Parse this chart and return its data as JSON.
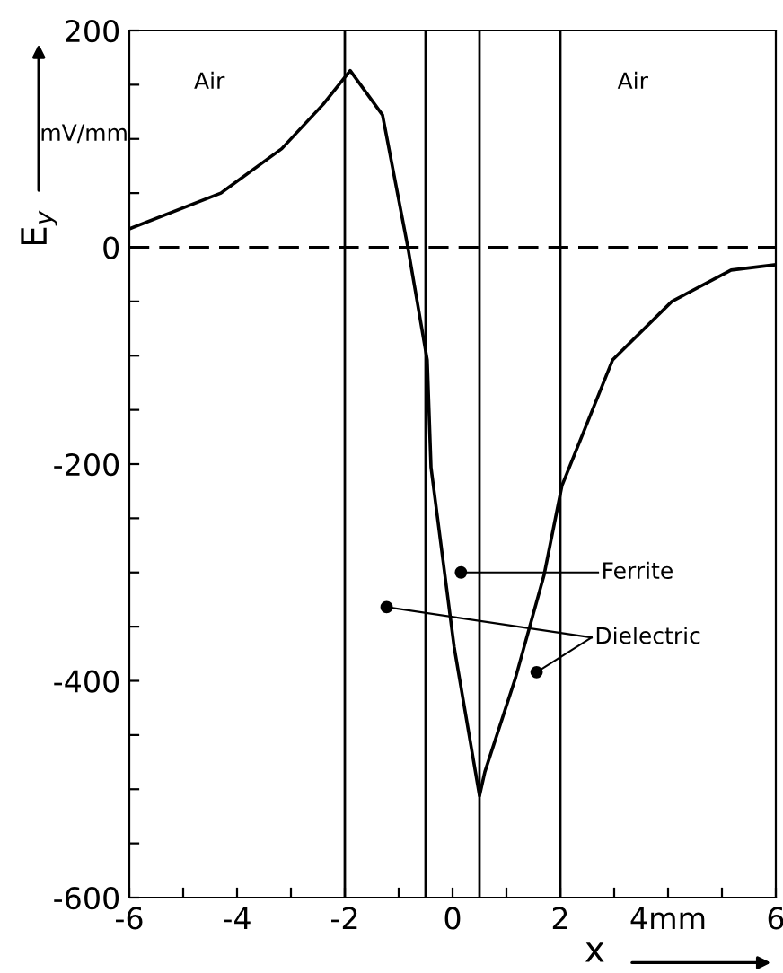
{
  "chart_data": {
    "type": "line",
    "xlabel": "x",
    "ylabel": "E$_{y}$",
    "x": [
      -6,
      -4.3,
      -3.17,
      -2.4,
      -1.9,
      -1.3,
      -0.83,
      -0.47,
      -0.4,
      0.03,
      0.5,
      0.6,
      1.17,
      1.7,
      2.03,
      2.97,
      4.07,
      5.17,
      6
    ],
    "series": [
      {
        "color": "#000000",
        "values": [
          17,
          50,
          91,
          132,
          163,
          122,
          0,
          -104,
          -203,
          -369,
          -506,
          -484,
          -397,
          -302,
          -220,
          -104,
          -50,
          -21,
          -16
        ]
      }
    ],
    "xlim": [
      -6,
      6
    ],
    "ylim": [
      -600,
      200
    ],
    "xticks": [
      -6,
      {
        "value": -5,
        "label": null
      },
      -4,
      {
        "value": -3,
        "label": null
      },
      -2,
      {
        "value": -1,
        "label": null
      },
      0,
      {
        "value": 1,
        "label": null
      },
      2,
      {
        "value": 3,
        "label": null
      },
      {
        "value": 4,
        "label": "4mm"
      },
      {
        "value": 5,
        "label": null
      },
      6
    ],
    "yticks": [
      -600,
      {
        "value": -550,
        "label": null
      },
      {
        "value": -500,
        "label": null
      },
      {
        "value": -450,
        "label": null
      },
      -400,
      {
        "value": -350,
        "label": null
      },
      {
        "value": -300,
        "label": null
      },
      {
        "value": -250,
        "label": null
      },
      -200,
      {
        "value": -150,
        "label": null
      },
      {
        "value": -100,
        "label": null
      },
      {
        "value": -50,
        "label": null
      },
      0,
      {
        "value": 50,
        "label": null
      },
      {
        "value": 100,
        "label": null
      },
      {
        "value": 150,
        "label": null
      },
      200
    ],
    "ref_lines": [
      {
        "axis": "y",
        "value": 0,
        "line_style": "dashed",
        "color": "#000000"
      },
      {
        "axis": "x",
        "value": -2,
        "color": "#000000"
      },
      {
        "axis": "x",
        "value": -0.5,
        "color": "#000000"
      },
      {
        "axis": "x",
        "value": 0.5,
        "color": "#000000"
      },
      {
        "axis": "x",
        "value": 2,
        "color": "#000000"
      }
    ],
    "annotations": [
      "mV/mm",
      "Air",
      "Air",
      "Ferrite",
      "Dielectric"
    ],
    "grid": false,
    "legend": false,
    "marker": "none",
    "line_style": "solid"
  }
}
